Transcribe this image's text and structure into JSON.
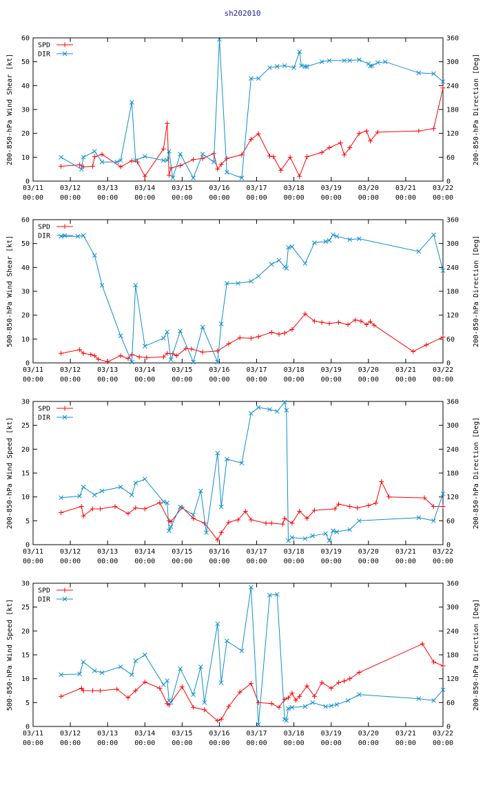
{
  "title": "sh202010",
  "x_tick_labels": [
    "03/11\n00:00",
    "03/12\n00:00",
    "03/13\n00:00",
    "03/14\n00:00",
    "03/15\n00:00",
    "03/16\n00:00",
    "03/17\n00:00",
    "03/18\n00:00",
    "03/19\n00:00",
    "03/20\n00:00",
    "03/21\n00:00",
    "03/22\n00:00"
  ],
  "colors": {
    "spd": "#ff0000",
    "dir": "#0d8ece"
  },
  "chart_data": [
    {
      "type": "line",
      "ylabel": "200-850-hPa Wind Shear [kt]",
      "y2label": "200-850-hPa Direction [Deg]",
      "xlim": [
        0,
        11
      ],
      "ylim": [
        0,
        60
      ],
      "y2lim": [
        0,
        360
      ],
      "yticks": [
        0,
        10,
        20,
        30,
        40,
        50,
        60
      ],
      "y2ticks": [
        0,
        60,
        120,
        180,
        240,
        300,
        360
      ],
      "legend": [
        "SPD",
        "DIR"
      ],
      "series": [
        {
          "name": "SPD",
          "axis": "left",
          "x": [
            0.75,
            1.25,
            1.35,
            1.6,
            1.65,
            1.85,
            2.35,
            2.65,
            2.8,
            3.0,
            3.5,
            3.6,
            3.65,
            3.7,
            3.95,
            4.3,
            4.55,
            4.85,
            4.95,
            5.05,
            5.2,
            5.6,
            5.85,
            6.05,
            6.35,
            6.45,
            6.65,
            6.9,
            7.15,
            7.35,
            7.75,
            7.95,
            8.25,
            8.35,
            8.5,
            8.75,
            8.95,
            9.05,
            9.25,
            10.35,
            10.75,
            11.0
          ],
          "y": [
            6.2,
            6.8,
            6.0,
            6.2,
            10.2,
            11.2,
            6.0,
            8.5,
            8.0,
            2.0,
            13.5,
            24.2,
            2.5,
            5.5,
            6.5,
            9.0,
            9.5,
            11.5,
            5.0,
            7.0,
            9.5,
            11.0,
            17.5,
            19.8,
            10.5,
            10.2,
            4.5,
            10.0,
            2.0,
            10.2,
            12.0,
            14.0,
            16.0,
            11.0,
            14.0,
            20.0,
            21.0,
            16.8,
            20.5,
            21.0,
            22.0,
            39.0
          ]
        },
        {
          "name": "DIR",
          "axis": "right",
          "x": [
            0.75,
            1.3,
            1.35,
            1.65,
            1.85,
            2.25,
            2.35,
            2.65,
            2.75,
            3.0,
            3.5,
            3.6,
            3.65,
            3.75,
            3.95,
            4.3,
            4.55,
            4.85,
            5.0,
            5.2,
            5.6,
            5.85,
            6.05,
            6.35,
            6.55,
            6.75,
            7.0,
            7.15,
            7.2,
            7.3,
            7.35,
            7.75,
            7.95,
            8.35,
            8.5,
            8.75,
            9.0,
            9.05,
            9.1,
            9.25,
            9.45,
            10.35,
            10.75,
            11.0
          ],
          "y": [
            60,
            30,
            60,
            75,
            48,
            48,
            52,
            198,
            52,
            62,
            52,
            52,
            75,
            8,
            68,
            8,
            68,
            48,
            356,
            22,
            8,
            258,
            258,
            285,
            288,
            290,
            285,
            325,
            290,
            288,
            288,
            300,
            303,
            303,
            303,
            305,
            295,
            289,
            290,
            298,
            300,
            272,
            270,
            250
          ]
        }
      ]
    },
    {
      "type": "line",
      "ylabel": "500-850-hPa Wind Shear [kt]",
      "y2label": "200-850-hPa Direction [Deg]",
      "xlim": [
        0,
        11
      ],
      "ylim": [
        0,
        60
      ],
      "y2lim": [
        0,
        360
      ],
      "yticks": [
        0,
        10,
        20,
        30,
        40,
        50,
        60
      ],
      "y2ticks": [
        0,
        60,
        120,
        180,
        240,
        300,
        360
      ],
      "legend": [
        "SPD",
        "DIR"
      ],
      "series": [
        {
          "name": "SPD",
          "axis": "left",
          "x": [
            0.75,
            1.25,
            1.35,
            1.55,
            1.65,
            1.75,
            2.0,
            2.35,
            2.55,
            2.65,
            2.85,
            3.05,
            3.5,
            3.6,
            3.75,
            3.85,
            4.1,
            4.25,
            4.55,
            4.95,
            5.25,
            5.55,
            5.85,
            6.05,
            6.4,
            6.6,
            6.75,
            6.95,
            7.3,
            7.55,
            7.75,
            7.95,
            8.2,
            8.45,
            8.65,
            8.8,
            8.95,
            9.05,
            9.15,
            10.2,
            10.55,
            11.0
          ],
          "y": [
            4.0,
            5.5,
            4.0,
            3.5,
            3.0,
            1.5,
            0.5,
            3.0,
            1.8,
            3.5,
            2.5,
            2.2,
            2.5,
            4.0,
            3.8,
            3.0,
            6.0,
            5.8,
            4.5,
            5.0,
            8.0,
            10.5,
            10.3,
            11.0,
            12.8,
            12.0,
            12.5,
            14.0,
            20.5,
            17.5,
            17.0,
            16.5,
            17.0,
            16.0,
            18.0,
            17.5,
            16.0,
            17.3,
            15.8,
            4.8,
            7.5,
            10.8
          ]
        },
        {
          "name": "DIR",
          "axis": "right",
          "x": [
            0.75,
            1.2,
            1.35,
            1.65,
            1.85,
            2.35,
            2.65,
            2.75,
            3.0,
            3.5,
            3.6,
            3.7,
            3.95,
            4.3,
            4.55,
            4.95,
            5.05,
            5.2,
            5.5,
            5.85,
            6.05,
            6.4,
            6.6,
            6.75,
            6.8,
            6.85,
            6.95,
            7.3,
            7.55,
            7.85,
            7.95,
            8.05,
            8.15,
            8.5,
            8.75,
            10.35,
            10.75,
            11.0
          ],
          "y": [
            318,
            318,
            320,
            270,
            195,
            68,
            2,
            195,
            42,
            62,
            78,
            8,
            80,
            2,
            90,
            2,
            98,
            200,
            200,
            205,
            218,
            248,
            258,
            242,
            238,
            290,
            292,
            250,
            302,
            305,
            308,
            322,
            318,
            310,
            312,
            280,
            322,
            232
          ]
        }
      ]
    },
    {
      "type": "line",
      "ylabel": "200-850-hPa Wind Speed [kt]",
      "y2label": "200-850-hPa Direction [Deg]",
      "xlim": [
        0,
        11
      ],
      "ylim": [
        0,
        30
      ],
      "y2lim": [
        0,
        360
      ],
      "yticks": [
        0,
        5,
        10,
        15,
        20,
        25,
        30
      ],
      "y2ticks": [
        0,
        60,
        120,
        180,
        240,
        300,
        360
      ],
      "legend": [
        "SPD",
        "DIR"
      ],
      "series": [
        {
          "name": "SPD",
          "axis": "left",
          "x": [
            0.75,
            1.3,
            1.35,
            1.6,
            1.8,
            2.2,
            2.55,
            2.75,
            3.0,
            3.4,
            3.65,
            3.7,
            4.0,
            4.3,
            4.6,
            4.95,
            5.05,
            5.25,
            5.5,
            5.7,
            5.85,
            6.25,
            6.4,
            6.7,
            6.75,
            6.95,
            7.15,
            7.35,
            7.55,
            8.1,
            8.2,
            8.5,
            8.7,
            9.0,
            9.2,
            9.35,
            9.55,
            10.5,
            10.75,
            11.0
          ],
          "y": [
            6.7,
            8.0,
            6.0,
            7.5,
            7.5,
            8.0,
            6.5,
            7.7,
            7.5,
            8.8,
            5.0,
            4.8,
            7.8,
            5.5,
            4.5,
            1.0,
            2.5,
            4.7,
            5.2,
            7.0,
            5.2,
            4.5,
            4.5,
            4.3,
            5.5,
            4.5,
            7.0,
            5.5,
            7.2,
            7.5,
            8.5,
            8.0,
            7.7,
            8.2,
            8.7,
            13.2,
            10.0,
            9.8,
            8.0,
            8.0
          ]
        },
        {
          "name": "DIR",
          "axis": "right",
          "x": [
            0.75,
            1.25,
            1.35,
            1.65,
            1.85,
            2.35,
            2.65,
            2.75,
            3.0,
            3.5,
            3.6,
            3.65,
            3.7,
            3.95,
            4.3,
            4.5,
            4.65,
            4.95,
            5.05,
            5.2,
            5.6,
            5.85,
            6.05,
            6.35,
            6.55,
            6.75,
            6.8,
            6.85,
            6.95,
            7.3,
            7.5,
            7.85,
            7.95,
            8.05,
            8.15,
            8.5,
            8.75,
            10.35,
            10.75,
            11.0
          ],
          "y": [
            118,
            122,
            145,
            125,
            135,
            145,
            125,
            155,
            165,
            108,
            105,
            35,
            45,
            95,
            75,
            135,
            30,
            230,
            95,
            215,
            205,
            330,
            345,
            340,
            335,
            358,
            338,
            10,
            18,
            15,
            22,
            28,
            10,
            35,
            32,
            38,
            60,
            68,
            60,
            128
          ]
        }
      ]
    },
    {
      "type": "line",
      "ylabel": "500-850-hPa Wind Speed [kt]",
      "y2label": "200-850-hPa Direction [Deg]",
      "xlim": [
        0,
        11
      ],
      "ylim": [
        0,
        30
      ],
      "y2lim": [
        0,
        360
      ],
      "yticks": [
        0,
        5,
        10,
        15,
        20,
        25,
        30
      ],
      "y2ticks": [
        0,
        60,
        120,
        180,
        240,
        300,
        360
      ],
      "legend": [
        "SPD",
        "DIR"
      ],
      "series": [
        {
          "name": "SPD",
          "axis": "left",
          "x": [
            0.75,
            1.3,
            1.35,
            1.6,
            1.8,
            2.25,
            2.55,
            2.75,
            3.0,
            3.4,
            3.6,
            3.65,
            4.0,
            4.3,
            4.6,
            4.95,
            5.05,
            5.25,
            5.55,
            5.85,
            6.05,
            6.4,
            6.6,
            6.75,
            6.85,
            6.95,
            7.05,
            7.15,
            7.35,
            7.55,
            7.75,
            8.0,
            8.2,
            8.35,
            8.5,
            8.75,
            10.45,
            10.75,
            11.0
          ],
          "y": [
            6.3,
            8.0,
            7.5,
            7.5,
            7.5,
            7.8,
            6.0,
            7.5,
            9.3,
            8.0,
            4.8,
            4.5,
            8.3,
            4.0,
            3.5,
            1.2,
            1.5,
            4.2,
            7.2,
            9.0,
            5.0,
            4.8,
            4.0,
            5.7,
            6.0,
            7.0,
            5.5,
            6.3,
            8.5,
            6.3,
            9.2,
            8.0,
            9.2,
            9.5,
            10.0,
            11.3,
            17.3,
            13.5,
            12.7
          ]
        },
        {
          "name": "DIR",
          "axis": "right",
          "x": [
            0.75,
            1.25,
            1.35,
            1.65,
            1.85,
            2.35,
            2.65,
            2.75,
            3.0,
            3.5,
            3.6,
            3.65,
            3.7,
            3.95,
            4.3,
            4.5,
            4.6,
            4.95,
            5.05,
            5.2,
            5.6,
            5.85,
            6.05,
            6.35,
            6.55,
            6.75,
            6.8,
            6.85,
            6.95,
            7.3,
            7.5,
            7.85,
            8.0,
            8.15,
            8.45,
            8.75,
            10.35,
            10.75,
            11.0
          ],
          "y": [
            130,
            132,
            162,
            140,
            135,
            150,
            130,
            165,
            180,
            105,
            115,
            65,
            60,
            145,
            80,
            150,
            60,
            258,
            110,
            215,
            190,
            350,
            5,
            330,
            332,
            18,
            15,
            45,
            48,
            50,
            60,
            50,
            52,
            55,
            65,
            80,
            70,
            65,
            92
          ]
        }
      ]
    }
  ]
}
